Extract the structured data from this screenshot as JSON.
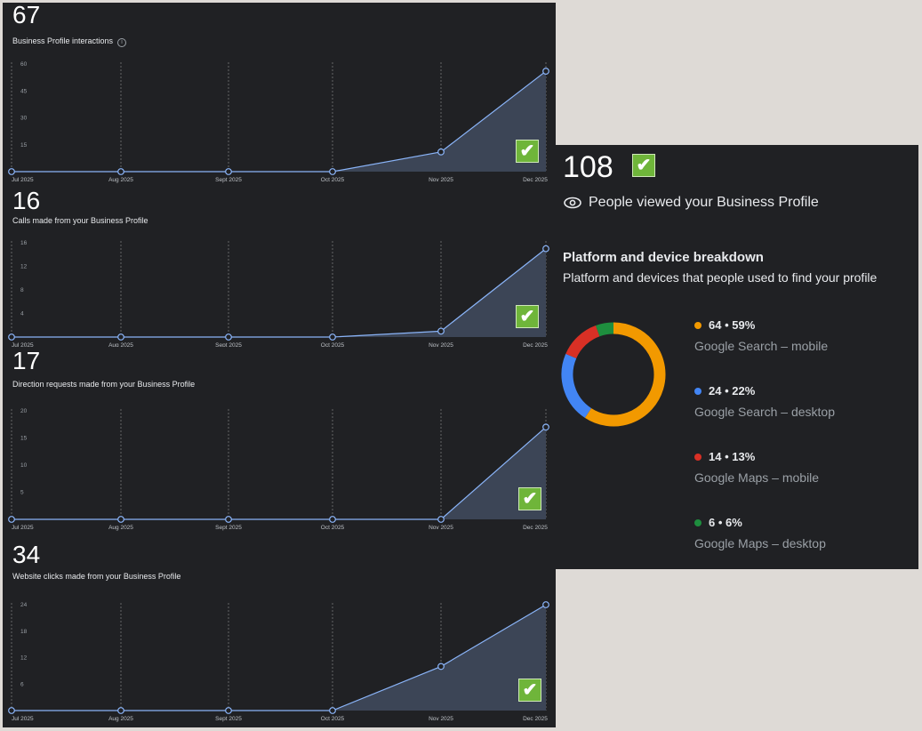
{
  "months": [
    "Jul 2025",
    "Aug 2025",
    "Sept 2025",
    "Oct 2025",
    "Nov 2025",
    "Dec 2025"
  ],
  "chart_data": [
    {
      "type": "area",
      "total": "67",
      "title": "Business Profile interactions",
      "info_icon": "info-icon",
      "x": [
        "Jul 2025",
        "Aug 2025",
        "Sept 2025",
        "Oct 2025",
        "Nov 2025",
        "Dec 2025"
      ],
      "values": [
        0,
        0,
        0,
        0,
        11,
        56
      ],
      "yticks": [
        15,
        30,
        45,
        60
      ],
      "ylim": [
        0,
        60
      ]
    },
    {
      "type": "area",
      "total": "16",
      "title": "Calls made from your Business Profile",
      "x": [
        "Jul 2025",
        "Aug 2025",
        "Sept 2025",
        "Oct 2025",
        "Nov 2025",
        "Dec 2025"
      ],
      "values": [
        0,
        0,
        0,
        0,
        1,
        15
      ],
      "yticks": [
        4,
        8,
        12,
        16
      ],
      "ylim": [
        0,
        16
      ]
    },
    {
      "type": "area",
      "total": "17",
      "title": "Direction requests made from your Business Profile",
      "x": [
        "Jul 2025",
        "Aug 2025",
        "Sept 2025",
        "Oct 2025",
        "Nov 2025",
        "Dec 2025"
      ],
      "values": [
        0,
        0,
        0,
        0,
        0,
        17
      ],
      "yticks": [
        5,
        10,
        15,
        20
      ],
      "ylim": [
        0,
        20
      ]
    },
    {
      "type": "area",
      "total": "34",
      "title": "Website clicks made from your Business Profile",
      "x": [
        "Jul 2025",
        "Aug 2025",
        "Sept 2025",
        "Oct 2025",
        "Nov 2025",
        "Dec 2025"
      ],
      "values": [
        0,
        0,
        0,
        0,
        10,
        24
      ],
      "yticks": [
        6,
        12,
        18,
        24
      ],
      "ylim": [
        0,
        24
      ]
    },
    {
      "type": "pie",
      "donut": true,
      "total": "108",
      "title": "People viewed your Business Profile",
      "section_title": "Platform and device breakdown",
      "section_subtitle": "Platform and devices that people used to find your profile",
      "slices": [
        {
          "label": "64 • 59%",
          "name": "Google Search – mobile",
          "value": 64,
          "color": "#f29900"
        },
        {
          "label": "24 • 22%",
          "name": "Google Search – desktop",
          "value": 24,
          "color": "#4285f4"
        },
        {
          "label": "14 • 13%",
          "name": "Google Maps – mobile",
          "value": 14,
          "color": "#d93025"
        },
        {
          "label": "6 • 6%",
          "name": "Google Maps – desktop",
          "value": 6,
          "color": "#1e8e3e"
        }
      ]
    }
  ],
  "check_icon": "✔",
  "colors": {
    "line": "#8ab4f8",
    "fill": "#3c4556",
    "bg": "#202124"
  }
}
